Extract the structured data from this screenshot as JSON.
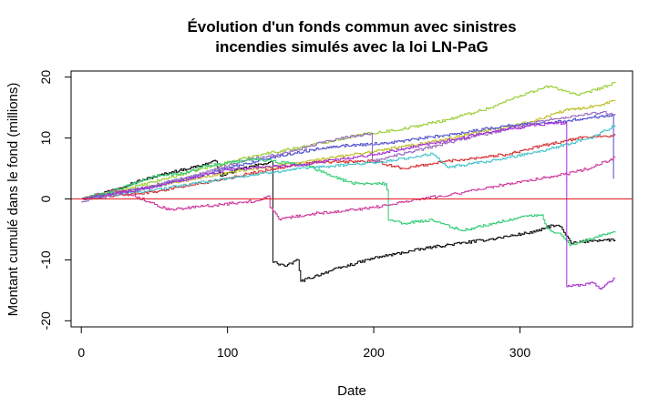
{
  "chart_data": {
    "type": "line",
    "title_line1": "Évolution d'un fonds commun avec sinistres",
    "title_line2": "incendies simulés avec la loi LN-PaG",
    "xlabel": "Date",
    "ylabel": "Montant cumulé dans le fond (millions)",
    "xlim": [
      -7,
      377
    ],
    "ylim": [
      -21,
      21
    ],
    "x_ticks": [
      0,
      100,
      200,
      300
    ],
    "y_ticks": [
      -20,
      -10,
      0,
      10,
      20
    ],
    "reference_line": {
      "y": 0,
      "color": "#e31a1c"
    },
    "grid": false,
    "series": [
      {
        "color": "#000000",
        "points": [
          [
            0,
            0
          ],
          [
            20,
            1.4
          ],
          [
            40,
            3
          ],
          [
            60,
            4.3
          ],
          [
            80,
            5.4
          ],
          [
            92,
            6.2
          ],
          [
            95,
            3.8
          ],
          [
            110,
            5
          ],
          [
            125,
            5.8
          ],
          [
            130,
            6.2
          ],
          [
            131,
            -10.4
          ],
          [
            140,
            -11
          ],
          [
            148,
            -10
          ],
          [
            150,
            -13.5
          ],
          [
            170,
            -11.8
          ],
          [
            200,
            -9.7
          ],
          [
            240,
            -7.9
          ],
          [
            280,
            -6.6
          ],
          [
            312,
            -5.3
          ],
          [
            322,
            -4.3
          ],
          [
            328,
            -4.6
          ],
          [
            330,
            -5.5
          ],
          [
            335,
            -7.3
          ],
          [
            350,
            -6.8
          ],
          [
            365,
            -6.7
          ]
        ]
      },
      {
        "color": "#9acd32",
        "points": [
          [
            0,
            0
          ],
          [
            40,
            2.2
          ],
          [
            80,
            4.8
          ],
          [
            120,
            7.2
          ],
          [
            150,
            8.5
          ],
          [
            190,
            10.5
          ],
          [
            220,
            11.5
          ],
          [
            250,
            13
          ],
          [
            280,
            15
          ],
          [
            300,
            17
          ],
          [
            320,
            18.5
          ],
          [
            330,
            17.8
          ],
          [
            340,
            17
          ],
          [
            365,
            19
          ]
        ]
      },
      {
        "color": "#bcbd22",
        "points": [
          [
            0,
            0
          ],
          [
            50,
            2.2
          ],
          [
            100,
            4.3
          ],
          [
            150,
            6
          ],
          [
            200,
            7.8
          ],
          [
            250,
            9.8
          ],
          [
            290,
            11.8
          ],
          [
            310,
            12.8
          ],
          [
            330,
            14.5
          ],
          [
            350,
            15.2
          ],
          [
            365,
            16.2
          ]
        ]
      },
      {
        "color": "#d62728",
        "points": [
          [
            0,
            0
          ],
          [
            50,
            1.2
          ],
          [
            100,
            3.4
          ],
          [
            130,
            4.9
          ],
          [
            160,
            6
          ],
          [
            200,
            6.2
          ],
          [
            220,
            5
          ],
          [
            250,
            6.2
          ],
          [
            290,
            7.3
          ],
          [
            320,
            9
          ],
          [
            345,
            10.2
          ],
          [
            365,
            10.4
          ]
        ]
      },
      {
        "color": "#4b4bcc",
        "points": [
          [
            0,
            0
          ],
          [
            40,
            1.6
          ],
          [
            80,
            3.9
          ],
          [
            130,
            6.8
          ],
          [
            170,
            8.6
          ],
          [
            210,
            9.2
          ],
          [
            250,
            10.5
          ],
          [
            290,
            12
          ],
          [
            330,
            12.8
          ],
          [
            350,
            13.4
          ],
          [
            363,
            13.8
          ],
          [
            364,
            3.3
          ]
        ]
      },
      {
        "color": "#3fc1c9",
        "points": [
          [
            0,
            0
          ],
          [
            50,
            1.5
          ],
          [
            100,
            3.4
          ],
          [
            140,
            4.7
          ],
          [
            180,
            5.6
          ],
          [
            210,
            6.2
          ],
          [
            240,
            7.4
          ],
          [
            250,
            5.2
          ],
          [
            280,
            6.2
          ],
          [
            320,
            8.2
          ],
          [
            350,
            10.2
          ],
          [
            365,
            12.1
          ]
        ]
      },
      {
        "color": "#9467bd",
        "points": [
          [
            0,
            -0.5
          ],
          [
            40,
            1.7
          ],
          [
            80,
            4
          ],
          [
            110,
            6.3
          ],
          [
            140,
            7.6
          ],
          [
            170,
            9.6
          ],
          [
            198,
            10.8
          ],
          [
            199,
            6.2
          ],
          [
            230,
            8
          ],
          [
            260,
            9.8
          ],
          [
            290,
            11.4
          ],
          [
            320,
            13
          ],
          [
            355,
            14.2
          ],
          [
            365,
            14
          ]
        ]
      },
      {
        "color": "#cc3399",
        "points": [
          [
            0,
            0
          ],
          [
            25,
            1.6
          ],
          [
            60,
            -1.8
          ],
          [
            80,
            -1.3
          ],
          [
            120,
            -0.3
          ],
          [
            128,
            0.5
          ],
          [
            129,
            -1.4
          ],
          [
            135,
            -3.3
          ],
          [
            160,
            -2.4
          ],
          [
            200,
            -1.4
          ],
          [
            230,
            0
          ],
          [
            260,
            1
          ],
          [
            290,
            2.4
          ],
          [
            330,
            4
          ],
          [
            350,
            5.2
          ],
          [
            365,
            6.8
          ]
        ]
      },
      {
        "color": "#2ecc71",
        "points": [
          [
            0,
            0
          ],
          [
            20,
            1.2
          ],
          [
            50,
            3.7
          ],
          [
            70,
            4.2
          ],
          [
            80,
            5.1
          ],
          [
            100,
            6
          ],
          [
            120,
            6.5
          ],
          [
            155,
            5.5
          ],
          [
            170,
            3.8
          ],
          [
            185,
            2.6
          ],
          [
            208,
            2.5
          ],
          [
            209,
            1.5
          ],
          [
            210,
            -3.5
          ],
          [
            220,
            -4
          ],
          [
            240,
            -3.5
          ],
          [
            260,
            -5.2
          ],
          [
            300,
            -3
          ],
          [
            315,
            -2.6
          ],
          [
            318,
            -4.8
          ],
          [
            328,
            -5.9
          ],
          [
            334,
            -7.6
          ],
          [
            360,
            -5.6
          ],
          [
            365,
            -5.5
          ]
        ]
      },
      {
        "color": "#a42bd4",
        "points": [
          [
            0,
            0
          ],
          [
            50,
            2
          ],
          [
            100,
            4.8
          ],
          [
            150,
            5.6
          ],
          [
            200,
            7.3
          ],
          [
            250,
            9.6
          ],
          [
            290,
            11.4
          ],
          [
            320,
            12.4
          ],
          [
            331,
            12.5
          ],
          [
            332,
            -14.4
          ],
          [
            350,
            -13.8
          ],
          [
            355,
            -14.8
          ],
          [
            365,
            -13
          ]
        ]
      }
    ]
  }
}
